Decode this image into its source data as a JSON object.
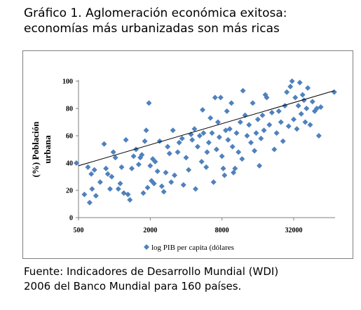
{
  "title_line1": "Gráfico 1. Aglomeración económica exitosa:",
  "title_line2": "economías más urbanizadas son más ricas",
  "source_line1": "Fuente: Indicadores de Desarrollo Mundial (WDI)",
  "source_line2": "2006 del Banco Mundial para 160 países.",
  "chart_data": {
    "type": "scatter",
    "ylabel_line1": "(%) Población",
    "ylabel_line2": "urbana",
    "legend": "log PIB per capita (dólares",
    "x_scale": "log",
    "x_ticks": [
      500,
      2000,
      8000,
      32000
    ],
    "x_tick_labels": [
      "500",
      "2000",
      "8000",
      "32000"
    ],
    "y_ticks": [
      0,
      20,
      40,
      60,
      80,
      100
    ],
    "ylim": [
      0,
      100
    ],
    "xlim": [
      500,
      70000
    ],
    "grid": false,
    "marker_color": "#4f81bd",
    "trendline": [
      [
        500,
        38
      ],
      [
        70000,
        93
      ]
    ],
    "points": [
      [
        480,
        40
      ],
      [
        560,
        17
      ],
      [
        600,
        37
      ],
      [
        620,
        11
      ],
      [
        640,
        32
      ],
      [
        650,
        21
      ],
      [
        680,
        35
      ],
      [
        700,
        16
      ],
      [
        760,
        26
      ],
      [
        820,
        54
      ],
      [
        850,
        36
      ],
      [
        880,
        32
      ],
      [
        920,
        21
      ],
      [
        950,
        30
      ],
      [
        980,
        48
      ],
      [
        1020,
        44
      ],
      [
        1080,
        21
      ],
      [
        1120,
        25
      ],
      [
        1150,
        37
      ],
      [
        1200,
        18
      ],
      [
        1250,
        57
      ],
      [
        1300,
        17
      ],
      [
        1350,
        13
      ],
      [
        1400,
        36
      ],
      [
        1450,
        45
      ],
      [
        1520,
        50
      ],
      [
        1600,
        39
      ],
      [
        1650,
        44
      ],
      [
        1700,
        46
      ],
      [
        1750,
        18
      ],
      [
        1800,
        56
      ],
      [
        1850,
        64
      ],
      [
        1900,
        22
      ],
      [
        1950,
        84
      ],
      [
        2000,
        38
      ],
      [
        2050,
        27
      ],
      [
        2100,
        43
      ],
      [
        2150,
        25
      ],
      [
        2200,
        41
      ],
      [
        2300,
        34
      ],
      [
        2400,
        56
      ],
      [
        2500,
        23
      ],
      [
        2600,
        19
      ],
      [
        2700,
        33
      ],
      [
        2800,
        52
      ],
      [
        2900,
        47
      ],
      [
        3000,
        26
      ],
      [
        3100,
        64
      ],
      [
        3200,
        31
      ],
      [
        3400,
        48
      ],
      [
        3500,
        55
      ],
      [
        3700,
        58
      ],
      [
        3800,
        24
      ],
      [
        4000,
        44
      ],
      [
        4200,
        35
      ],
      [
        4400,
        61
      ],
      [
        4500,
        57
      ],
      [
        4700,
        65
      ],
      [
        4800,
        21
      ],
      [
        5000,
        52
      ],
      [
        5200,
        60
      ],
      [
        5400,
        41
      ],
      [
        5500,
        79
      ],
      [
        5600,
        62
      ],
      [
        5900,
        37
      ],
      [
        6000,
        48
      ],
      [
        6200,
        55
      ],
      [
        6400,
        73
      ],
      [
        6600,
        62
      ],
      [
        6800,
        26
      ],
      [
        7000,
        88
      ],
      [
        7200,
        50
      ],
      [
        7400,
        70
      ],
      [
        7600,
        59
      ],
      [
        7800,
        88
      ],
      [
        8000,
        45
      ],
      [
        8200,
        36
      ],
      [
        8400,
        31
      ],
      [
        8600,
        64
      ],
      [
        8800,
        78
      ],
      [
        9000,
        57
      ],
      [
        9300,
        65
      ],
      [
        9600,
        84
      ],
      [
        9800,
        52
      ],
      [
        10000,
        33
      ],
      [
        10300,
        36
      ],
      [
        10600,
        62
      ],
      [
        11000,
        48
      ],
      [
        11400,
        70
      ],
      [
        11800,
        43
      ],
      [
        12000,
        93
      ],
      [
        12500,
        75
      ],
      [
        13000,
        60
      ],
      [
        13500,
        68
      ],
      [
        14000,
        55
      ],
      [
        14500,
        84
      ],
      [
        15000,
        49
      ],
      [
        15500,
        62
      ],
      [
        16000,
        72
      ],
      [
        16500,
        38
      ],
      [
        17000,
        58
      ],
      [
        17500,
        75
      ],
      [
        18000,
        64
      ],
      [
        18500,
        90
      ],
      [
        19000,
        88
      ],
      [
        20000,
        68
      ],
      [
        21000,
        77
      ],
      [
        22000,
        50
      ],
      [
        23000,
        62
      ],
      [
        24000,
        78
      ],
      [
        25000,
        70
      ],
      [
        26000,
        56
      ],
      [
        27000,
        82
      ],
      [
        28000,
        92
      ],
      [
        29000,
        67
      ],
      [
        30000,
        96
      ],
      [
        31000,
        100
      ],
      [
        32000,
        72
      ],
      [
        33000,
        88
      ],
      [
        34000,
        65
      ],
      [
        35000,
        82
      ],
      [
        36000,
        99
      ],
      [
        37000,
        76
      ],
      [
        38000,
        90
      ],
      [
        39000,
        86
      ],
      [
        40000,
        70
      ],
      [
        41000,
        80
      ],
      [
        42000,
        95
      ],
      [
        44000,
        68
      ],
      [
        46000,
        85
      ],
      [
        48000,
        78
      ],
      [
        50000,
        80
      ],
      [
        52000,
        60
      ],
      [
        54000,
        81
      ],
      [
        70000,
        92
      ]
    ]
  }
}
